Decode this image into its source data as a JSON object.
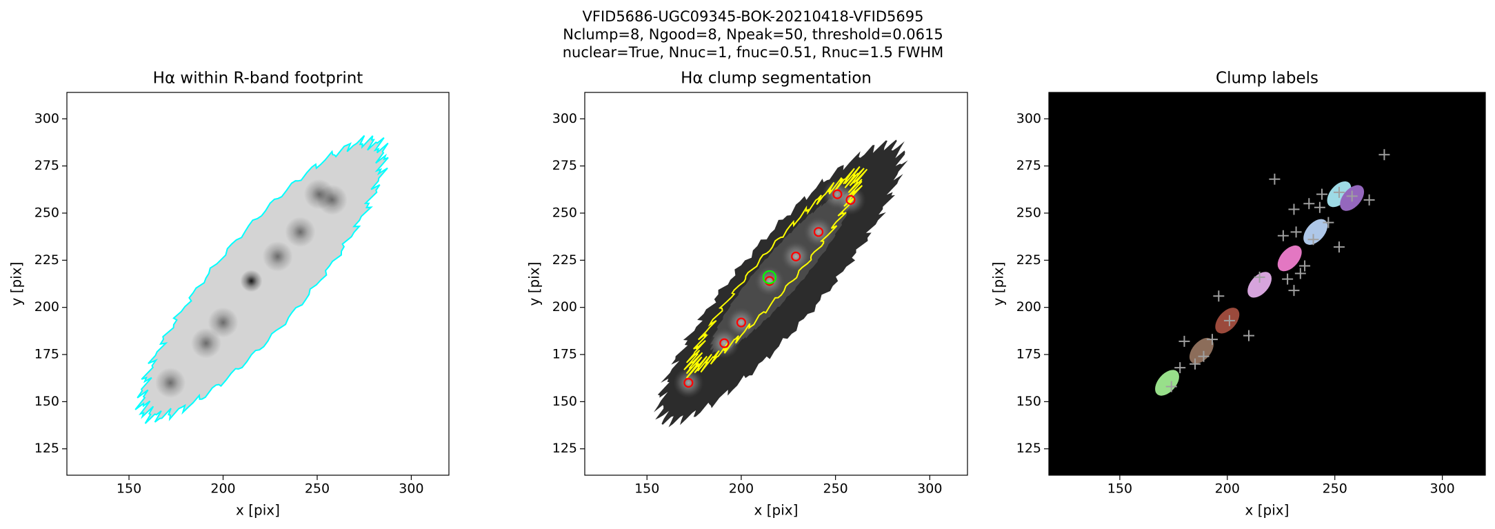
{
  "suptitle": [
    "VFID5686-UGC09345-BOK-20210418-VFID5695",
    "Nclump=8, Ngood=8, Npeak=50, threshold=0.0615",
    "nuclear=True, Nnuc=1, fnuc=0.51, Rnuc=1.5 FWHM"
  ],
  "chart_data": [
    {
      "type": "image",
      "image_style": "footprint",
      "title": "Hα within R-band footprint",
      "xlabel": "x [pix]",
      "ylabel": "y [pix]",
      "xlim": [
        117,
        320
      ],
      "ylim": [
        111,
        314
      ],
      "xticks": [
        150,
        200,
        250,
        300
      ],
      "yticks": [
        125,
        150,
        175,
        200,
        225,
        250,
        275,
        300
      ],
      "background": "#ffffff",
      "outline_color": "#00ffff"
    },
    {
      "type": "image",
      "image_style": "segmentation",
      "title": "Hα clump segmentation",
      "xlabel": "x [pix]",
      "ylabel": "y [pix]",
      "xlim": [
        117,
        320
      ],
      "ylim": [
        111,
        314
      ],
      "xticks": [
        150,
        200,
        250,
        300
      ],
      "yticks": [
        125,
        150,
        175,
        200,
        225,
        250,
        275,
        300
      ],
      "background": "#ffffff",
      "outline_color": "#ffff00",
      "markers": [
        {
          "marker": "circle",
          "color": "#ff0000",
          "x": [
            172,
            191,
            200,
            215,
            229,
            241,
            251,
            258
          ],
          "y": [
            160,
            181,
            192,
            214,
            227,
            240,
            260,
            257
          ]
        },
        {
          "marker": "circle",
          "color": "#00ff00",
          "x": [
            215
          ],
          "y": [
            216
          ]
        }
      ]
    },
    {
      "type": "image",
      "image_style": "labels",
      "title": "Clump labels",
      "xlabel": "x [pix]",
      "ylabel": "y [pix]",
      "xlim": [
        117,
        320
      ],
      "ylim": [
        111,
        314
      ],
      "xticks": [
        150,
        200,
        250,
        300
      ],
      "yticks": [
        125,
        150,
        175,
        200,
        225,
        250,
        275,
        300
      ],
      "background": "#000000",
      "markers": [
        {
          "marker": "blob",
          "colors": [
            "#98df8a",
            "#8c6d5a",
            "#9b4a3c",
            "#d6a4dc",
            "#e377c2",
            "#aec7e8",
            "#9edae5",
            "#9467bd"
          ],
          "x": [
            172,
            188,
            200,
            215,
            229,
            241,
            252,
            258
          ],
          "y": [
            160,
            177,
            193,
            212,
            226,
            240,
            260,
            258
          ]
        },
        {
          "marker": "plus",
          "color": "#a0a0a0",
          "x": [
            273,
            222,
            231,
            238,
            244,
            266,
            252,
            240,
            247,
            236,
            228,
            234,
            231,
            196,
            210,
            180,
            185,
            189,
            178,
            174,
            193,
            232,
            226,
            243,
            201,
            215,
            258,
            252
          ],
          "y": [
            281,
            268,
            252,
            255,
            260,
            257,
            232,
            236,
            245,
            222,
            215,
            218,
            209,
            206,
            185,
            182,
            170,
            174,
            168,
            158,
            183,
            240,
            238,
            253,
            193,
            216,
            259,
            261
          ]
        }
      ]
    }
  ]
}
